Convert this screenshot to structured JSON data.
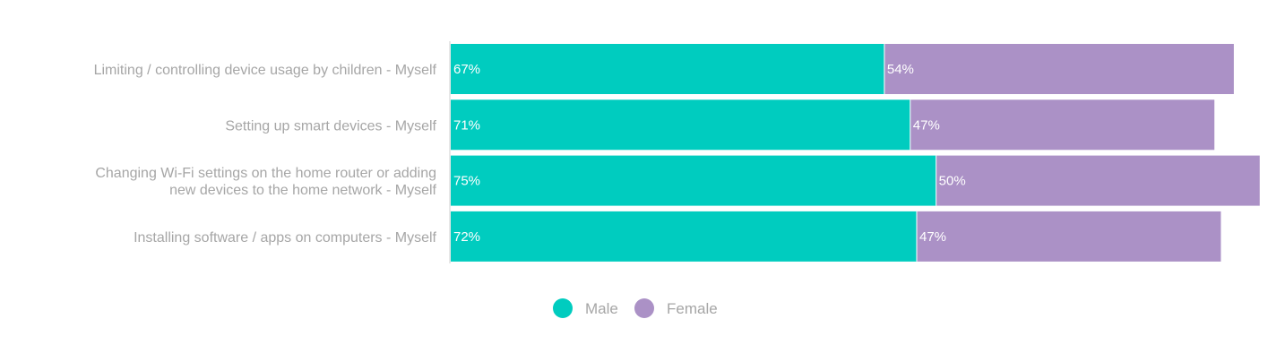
{
  "chart_data": {
    "type": "bar",
    "orientation": "horizontal",
    "stacked": true,
    "categories": [
      [
        "Limiting / controlling device usage by children - Myself"
      ],
      [
        "Setting up smart devices - Myself"
      ],
      [
        "Changing Wi-Fi settings on the home router or adding",
        "new devices to the home network - Myself"
      ],
      [
        "Installing software / apps on computers - Myself"
      ]
    ],
    "series": [
      {
        "name": "Male",
        "color": "#00ccbf",
        "values": [
          67,
          71,
          75,
          72
        ],
        "labels": [
          "67%",
          "71%",
          "75%",
          "72%"
        ]
      },
      {
        "name": "Female",
        "color": "#ab91c6",
        "values": [
          54,
          47,
          50,
          47
        ],
        "labels": [
          "54%",
          "47%",
          "50%",
          "47%"
        ]
      }
    ],
    "xlim": [
      0,
      126
    ],
    "grid": false,
    "legend_position": "bottom"
  }
}
